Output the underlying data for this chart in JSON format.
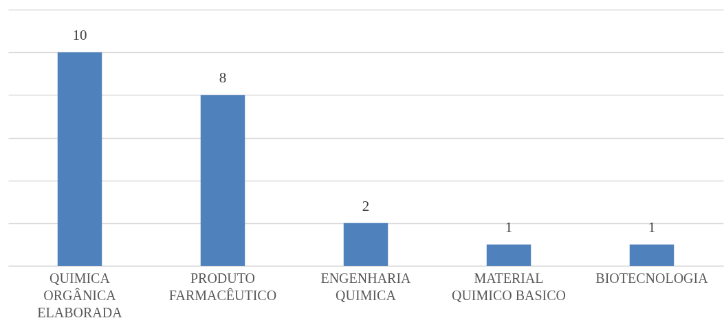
{
  "chart_data": {
    "type": "bar",
    "categories": [
      "QUIMICA ORGÂNICA ELABORADA",
      "PRODUTO FARMACÊUTICO",
      "ENGENHARIA QUIMICA",
      "MATERIAL QUIMICO BASICO",
      "BIOTECNOLOGIA"
    ],
    "values": [
      10,
      8,
      2,
      1,
      1
    ],
    "color": "#4f81bd",
    "ylim": [
      0,
      12
    ],
    "yticks": [
      0,
      2,
      4,
      6,
      8,
      10,
      12
    ],
    "grid": "y",
    "tick_labels": "x",
    "data_labels": true
  }
}
